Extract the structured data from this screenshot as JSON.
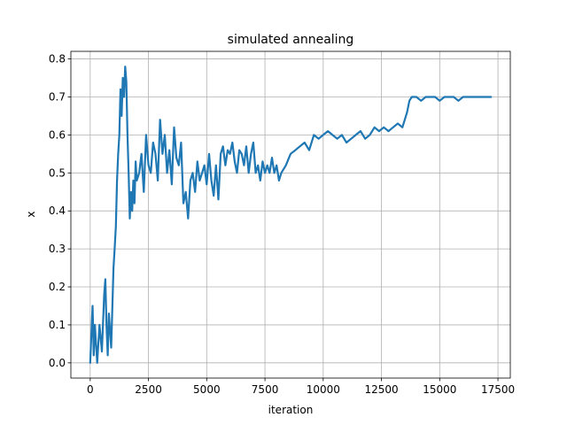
{
  "chart_data": {
    "type": "line",
    "title": "simulated annealing",
    "xlabel": "iteration",
    "ylabel": "x",
    "xlim": [
      -830,
      18030
    ],
    "ylim": [
      -0.04,
      0.82
    ],
    "xticks": [
      0,
      2500,
      5000,
      7500,
      10000,
      12500,
      15000,
      17500
    ],
    "xtick_labels": [
      "0",
      "2500",
      "5000",
      "7500",
      "10000",
      "12500",
      "15000",
      "17500"
    ],
    "yticks": [
      0.0,
      0.1,
      0.2,
      0.3,
      0.4,
      0.5,
      0.6,
      0.7,
      0.8
    ],
    "ytick_labels": [
      "0.0",
      "0.1",
      "0.2",
      "0.3",
      "0.4",
      "0.5",
      "0.6",
      "0.7",
      "0.8"
    ],
    "grid": true,
    "colors": {
      "line": "#1f77b4",
      "grid": "#b0b0b0"
    },
    "series": [
      {
        "x": [
          0,
          100,
          150,
          200,
          300,
          400,
          500,
          600,
          650,
          700,
          750,
          800,
          900,
          1000,
          1050,
          1100,
          1150,
          1200,
          1250,
          1300,
          1350,
          1400,
          1450,
          1500,
          1550,
          1600,
          1650,
          1700,
          1750,
          1800,
          1850,
          1900,
          1950,
          2000,
          2100,
          2200,
          2300,
          2400,
          2500,
          2600,
          2700,
          2800,
          2900,
          3000,
          3100,
          3200,
          3300,
          3400,
          3500,
          3600,
          3700,
          3800,
          3900,
          4000,
          4100,
          4200,
          4300,
          4400,
          4500,
          4600,
          4700,
          4800,
          4900,
          5000,
          5100,
          5200,
          5300,
          5400,
          5500,
          5600,
          5700,
          5800,
          5900,
          6000,
          6100,
          6200,
          6300,
          6400,
          6500,
          6600,
          6700,
          6800,
          6900,
          7000,
          7100,
          7200,
          7300,
          7400,
          7500,
          7600,
          7700,
          7800,
          7900,
          8000,
          8100,
          8200,
          8400,
          8600,
          8800,
          9000,
          9200,
          9400,
          9600,
          9800,
          10000,
          10200,
          10400,
          10600,
          10800,
          11000,
          11200,
          11400,
          11600,
          11800,
          12000,
          12200,
          12400,
          12600,
          12800,
          13000,
          13200,
          13400,
          13500,
          13600,
          13700,
          13800,
          14000,
          14200,
          14400,
          14600,
          14800,
          15000,
          15200,
          15400,
          15600,
          15800,
          16000,
          16200,
          16400,
          16600,
          16800,
          17000,
          17200
        ],
        "y": [
          0.0,
          0.15,
          0.02,
          0.1,
          0.0,
          0.1,
          0.03,
          0.18,
          0.22,
          0.1,
          0.02,
          0.13,
          0.04,
          0.25,
          0.3,
          0.36,
          0.48,
          0.55,
          0.6,
          0.72,
          0.65,
          0.75,
          0.7,
          0.78,
          0.74,
          0.6,
          0.5,
          0.38,
          0.45,
          0.4,
          0.48,
          0.42,
          0.53,
          0.48,
          0.5,
          0.55,
          0.45,
          0.6,
          0.52,
          0.5,
          0.58,
          0.55,
          0.48,
          0.64,
          0.55,
          0.6,
          0.5,
          0.56,
          0.47,
          0.62,
          0.54,
          0.52,
          0.58,
          0.42,
          0.45,
          0.38,
          0.48,
          0.5,
          0.45,
          0.53,
          0.48,
          0.5,
          0.52,
          0.47,
          0.55,
          0.48,
          0.44,
          0.52,
          0.43,
          0.55,
          0.57,
          0.52,
          0.56,
          0.55,
          0.58,
          0.53,
          0.5,
          0.56,
          0.55,
          0.52,
          0.57,
          0.5,
          0.55,
          0.58,
          0.5,
          0.52,
          0.48,
          0.53,
          0.5,
          0.52,
          0.5,
          0.54,
          0.5,
          0.52,
          0.48,
          0.5,
          0.52,
          0.55,
          0.56,
          0.57,
          0.58,
          0.56,
          0.6,
          0.59,
          0.6,
          0.61,
          0.6,
          0.59,
          0.6,
          0.58,
          0.59,
          0.6,
          0.61,
          0.59,
          0.6,
          0.62,
          0.61,
          0.62,
          0.61,
          0.62,
          0.63,
          0.62,
          0.64,
          0.66,
          0.69,
          0.7,
          0.7,
          0.69,
          0.7,
          0.7,
          0.7,
          0.69,
          0.7,
          0.7,
          0.7,
          0.69,
          0.7,
          0.7,
          0.7,
          0.7,
          0.7,
          0.7,
          0.7
        ]
      }
    ]
  }
}
